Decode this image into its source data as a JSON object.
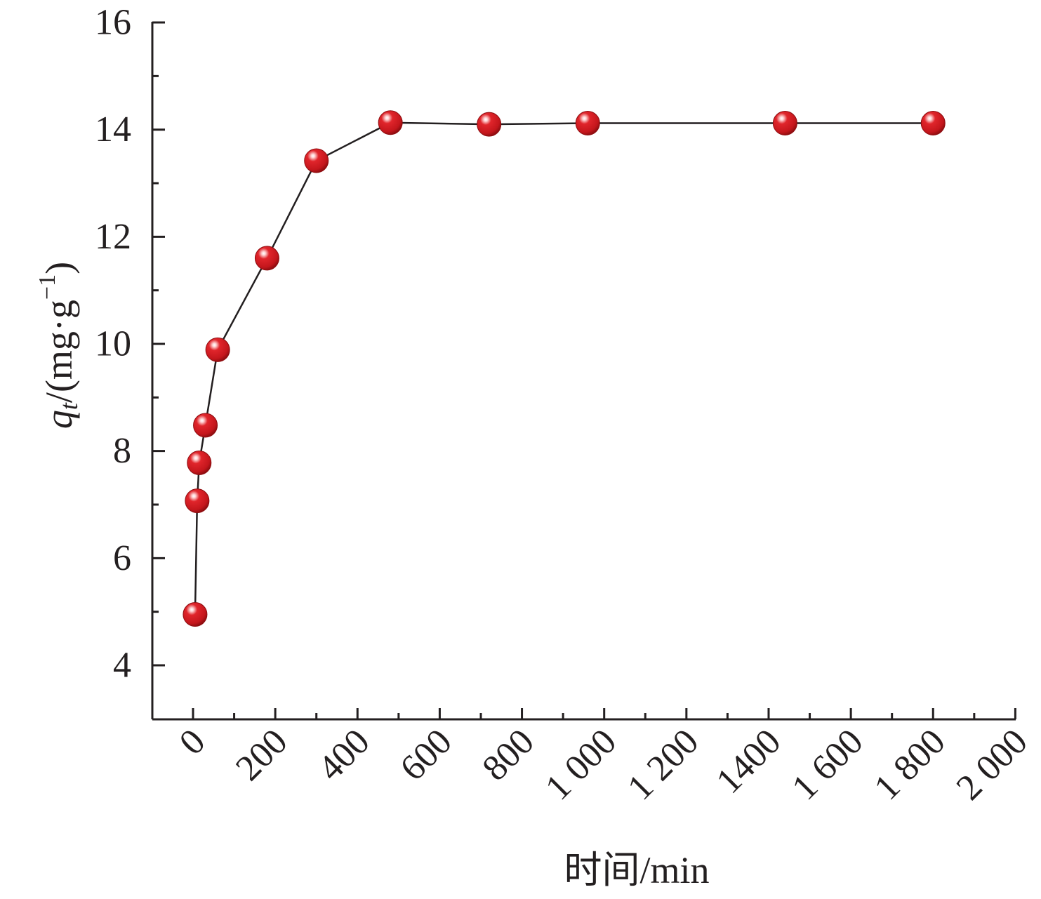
{
  "chart_data": {
    "type": "line",
    "xlabel": "时间/min",
    "ylabel": {
      "symbol": "q",
      "subscript": "t",
      "unit_open": "/(mg·g",
      "unit_sup": "−1",
      "unit_close": ")"
    },
    "xlim": [
      -50,
      2000
    ],
    "ylim": [
      3,
      16
    ],
    "x_ticks": [
      {
        "value": 0,
        "label": "0"
      },
      {
        "value": 200,
        "label": "200"
      },
      {
        "value": 400,
        "label": "400"
      },
      {
        "value": 600,
        "label": "600"
      },
      {
        "value": 800,
        "label": "800"
      },
      {
        "value": 1000,
        "label": "1 000"
      },
      {
        "value": 1200,
        "label": "1 200"
      },
      {
        "value": 1400,
        "label": "1400"
      },
      {
        "value": 1600,
        "label": "1 600"
      },
      {
        "value": 1800,
        "label": "1 800"
      },
      {
        "value": 2000,
        "label": "2 000"
      }
    ],
    "x_minor_ticks": [
      100,
      300,
      500,
      700,
      900,
      1100,
      1300,
      1500,
      1700,
      1900
    ],
    "y_ticks": [
      {
        "value": 4,
        "label": "4"
      },
      {
        "value": 6,
        "label": "6"
      },
      {
        "value": 8,
        "label": "8"
      },
      {
        "value": 10,
        "label": "10"
      },
      {
        "value": 12,
        "label": "12"
      },
      {
        "value": 14,
        "label": "14"
      },
      {
        "value": 16,
        "label": "16"
      }
    ],
    "y_minor_ticks": [
      5,
      7,
      9,
      11,
      13,
      15
    ],
    "series": [
      {
        "x": [
          5,
          10,
          15,
          30,
          60,
          180,
          300,
          480,
          720,
          960,
          1440,
          1800
        ],
        "y": [
          4.95,
          7.07,
          7.78,
          8.48,
          9.89,
          11.6,
          13.42,
          14.13,
          14.1,
          14.12,
          14.12,
          14.12
        ]
      }
    ],
    "grid": false,
    "legend": "none",
    "colors": {
      "marker": "#e0252b",
      "marker_dark": "#8e0d10",
      "marker_highlight": "#ffd6d6",
      "line": "#231f20",
      "axis": "#231f20"
    }
  }
}
